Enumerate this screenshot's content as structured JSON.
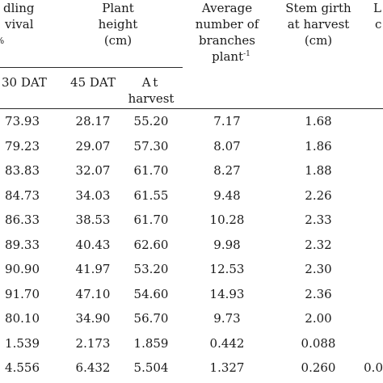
{
  "header": {
    "seedling": {
      "line1": "dling",
      "line2": "vival",
      "line3": "%"
    },
    "plant_height": {
      "line1": "Plant",
      "line2": "height",
      "line3": "(cm)"
    },
    "branches": {
      "line1": "Average",
      "line2": "number of",
      "line3": "branches",
      "line4": "plant",
      "line4_sup": "-1"
    },
    "stem_girth": {
      "line1": "Stem girth",
      "line2": "at harvest",
      "line3": "(cm)"
    },
    "last_col": {
      "line1": "L",
      "line2": "c"
    },
    "sub": {
      "dat30": "30 DAT",
      "dat45": "45 DAT",
      "harvest1": "At",
      "harvest2": "harvest"
    }
  },
  "rows": [
    {
      "survival": "73.93",
      "h45": "28.17",
      "hh": "55.20",
      "br": "7.17",
      "sg": "1.68",
      "last": ""
    },
    {
      "survival": "79.23",
      "h45": "29.07",
      "hh": "57.30",
      "br": "8.07",
      "sg": "1.86",
      "last": ""
    },
    {
      "survival": "83.83",
      "h45": "32.07",
      "hh": "61.70",
      "br": "8.27",
      "sg": "1.88",
      "last": ""
    },
    {
      "survival": "84.73",
      "h45": "34.03",
      "hh": "61.55",
      "br": "9.48",
      "sg": "2.26",
      "last": ""
    },
    {
      "survival": "86.33",
      "h45": "38.53",
      "hh": "61.70",
      "br": "10.28",
      "sg": "2.33",
      "last": ""
    },
    {
      "survival": "89.33",
      "h45": "40.43",
      "hh": "62.60",
      "br": "9.98",
      "sg": "2.32",
      "last": ""
    },
    {
      "survival": "90.90",
      "h45": "41.97",
      "hh": "53.20",
      "br": "12.53",
      "sg": "2.30",
      "last": ""
    },
    {
      "survival": "91.70",
      "h45": "47.10",
      "hh": "54.60",
      "br": "14.93",
      "sg": "2.36",
      "last": ""
    },
    {
      "survival": "80.10",
      "h45": "34.90",
      "hh": "56.70",
      "br": "9.73",
      "sg": "2.00",
      "last": ""
    },
    {
      "survival": "1.539",
      "h45": "2.173",
      "hh": "1.859",
      "br": "0.442",
      "sg": "0.088",
      "last": ""
    },
    {
      "survival": "4.556",
      "h45": "6.432",
      "hh": "5.504",
      "br": "1.327",
      "sg": "0.260",
      "last": "0.0"
    }
  ]
}
